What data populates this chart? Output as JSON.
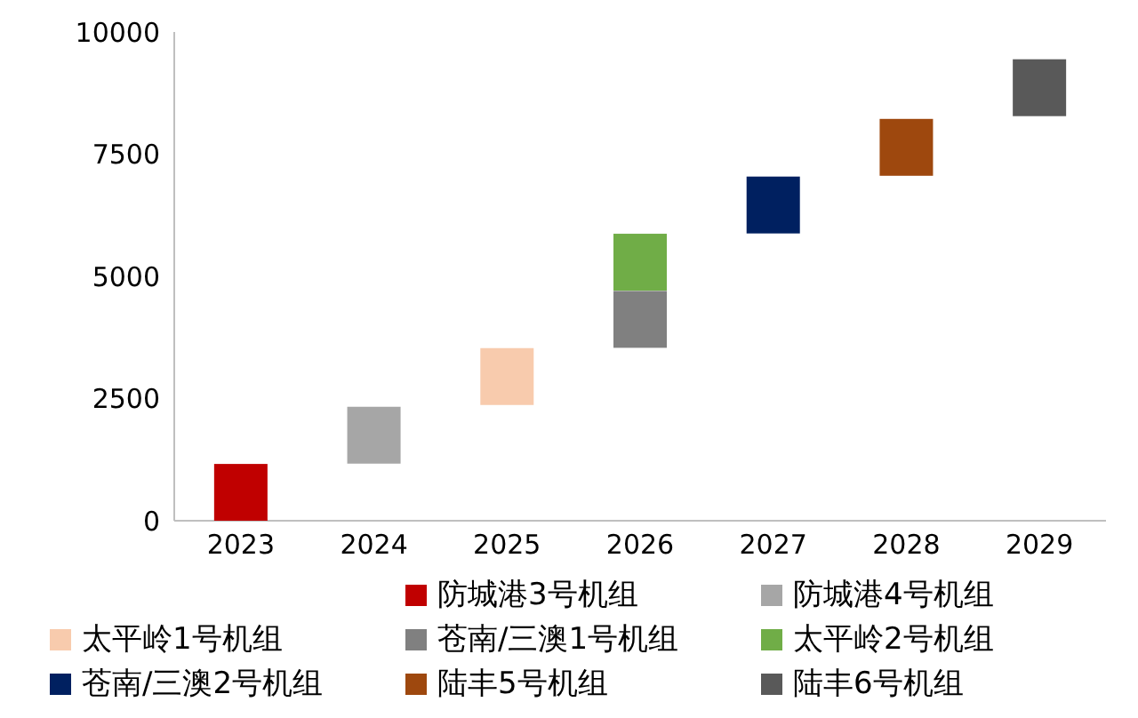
{
  "chart_data": {
    "type": "scatter",
    "categories": [
      "2023",
      "2024",
      "2025",
      "2026",
      "2027",
      "2028",
      "2029"
    ],
    "ylim": [
      0,
      10000
    ],
    "yticks": [
      0,
      2500,
      5000,
      7500,
      10000
    ],
    "grid": false,
    "legend": "bottom",
    "marker": "square",
    "series": [
      {
        "name": "防城港3号机组",
        "color": "#c00000",
        "values": [
          580,
          null,
          null,
          null,
          null,
          null,
          null
        ]
      },
      {
        "name": "防城港4号机组",
        "color": "#a6a6a6",
        "values": [
          null,
          1750,
          null,
          null,
          null,
          null,
          null
        ]
      },
      {
        "name": "太平岭1号机组",
        "color": "#f8cbad",
        "values": [
          null,
          null,
          2950,
          null,
          null,
          null,
          null
        ]
      },
      {
        "name": "苍南/三澳1号机组",
        "color": "#808080",
        "values": [
          null,
          null,
          null,
          4120,
          null,
          null,
          null
        ]
      },
      {
        "name": "太平岭2号机组",
        "color": "#70ad47",
        "values": [
          null,
          null,
          null,
          5290,
          null,
          null,
          null
        ]
      },
      {
        "name": "苍南/三澳2号机组",
        "color": "#002060",
        "values": [
          null,
          null,
          null,
          null,
          6460,
          null,
          null
        ]
      },
      {
        "name": "陆丰5号机组",
        "color": "#9e480e",
        "values": [
          null,
          null,
          null,
          null,
          null,
          7640,
          null
        ]
      },
      {
        "name": "陆丰6号机组",
        "color": "#595959",
        "values": [
          null,
          null,
          null,
          null,
          null,
          null,
          8860
        ]
      }
    ]
  }
}
